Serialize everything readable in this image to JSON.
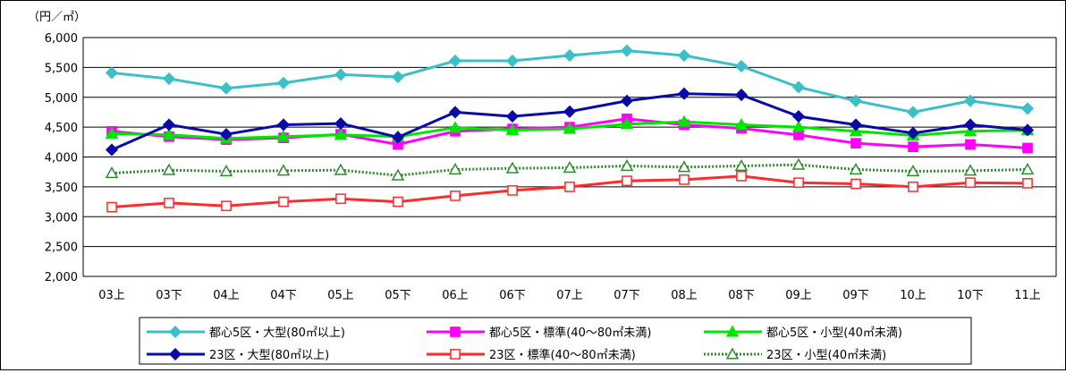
{
  "chart_data": {
    "type": "line",
    "unit_label": "（円／㎡）",
    "ylim": [
      2000,
      6000
    ],
    "yticks": [
      2000,
      2500,
      3000,
      3500,
      4000,
      4500,
      5000,
      5500,
      6000
    ],
    "ytick_labels": [
      "2,000",
      "2,500",
      "3,000",
      "3,500",
      "4,000",
      "4,500",
      "5,000",
      "5,500",
      "6,000"
    ],
    "grid": true,
    "legend_position": "bottom",
    "categories": [
      "03上",
      "03下",
      "04上",
      "04下",
      "05上",
      "05下",
      "06上",
      "06下",
      "07上",
      "07下",
      "08上",
      "08下",
      "09上",
      "09下",
      "10上",
      "10下",
      "11上"
    ],
    "series": [
      {
        "name": "都心5区・大型(80㎡以上)",
        "color": "#3cbfc7",
        "marker": "diamond",
        "filled": true,
        "line_style": "solid",
        "values": [
          5410,
          5310,
          5150,
          5240,
          5380,
          5340,
          5610,
          5610,
          5700,
          5780,
          5700,
          5520,
          5170,
          4940,
          4750,
          4940,
          4810
        ]
      },
      {
        "name": "都心5区・標準(40～80㎡未満)",
        "color": "#ff00ff",
        "marker": "square",
        "filled": true,
        "line_style": "solid",
        "values": [
          4430,
          4340,
          4290,
          4320,
          4380,
          4210,
          4430,
          4470,
          4500,
          4640,
          4540,
          4480,
          4370,
          4230,
          4170,
          4210,
          4150
        ]
      },
      {
        "name": "都心5区・小型(40㎡未満)",
        "color": "#00e600",
        "marker": "triangle",
        "filled": true,
        "line_style": "solid",
        "values": [
          4390,
          4370,
          4310,
          4340,
          4370,
          4340,
          4490,
          4450,
          4470,
          4550,
          4590,
          4540,
          4500,
          4430,
          4360,
          4430,
          4450
        ]
      },
      {
        "name": "23区・大型(80㎡以上)",
        "color": "#0a0aa8",
        "marker": "diamond",
        "filled": true,
        "line_style": "solid",
        "values": [
          4120,
          4540,
          4380,
          4540,
          4560,
          4330,
          4750,
          4680,
          4760,
          4940,
          5060,
          5040,
          4680,
          4540,
          4400,
          4540,
          4450
        ]
      },
      {
        "name": "23区・標準(40～80㎡未満)",
        "color": "#ff2a2a",
        "marker": "square",
        "filled": false,
        "line_style": "solid",
        "values": [
          3160,
          3230,
          3180,
          3250,
          3300,
          3250,
          3350,
          3440,
          3500,
          3600,
          3620,
          3680,
          3570,
          3550,
          3500,
          3570,
          3560
        ]
      },
      {
        "name": "23区・小型(40㎡未満)",
        "color": "#2e8b2e",
        "marker": "triangle",
        "filled": false,
        "line_style": "dotted",
        "values": [
          3730,
          3780,
          3760,
          3770,
          3780,
          3690,
          3790,
          3810,
          3820,
          3850,
          3830,
          3850,
          3870,
          3790,
          3760,
          3770,
          3790
        ]
      }
    ]
  }
}
